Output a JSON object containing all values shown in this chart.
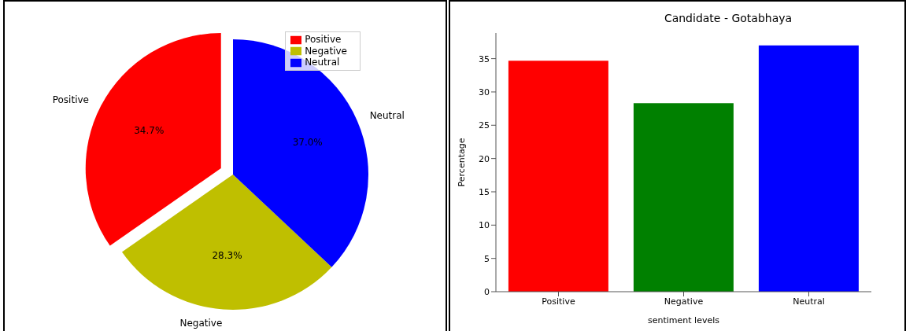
{
  "chart_data": [
    {
      "type": "pie",
      "categories": [
        "Positive",
        "Negative",
        "Neutral"
      ],
      "values": [
        34.7,
        28.3,
        37.0
      ],
      "colors": [
        "#ff0000",
        "#bfbf00",
        "#0000ff"
      ],
      "value_labels": [
        "34.7%",
        "28.3%",
        "37.0%"
      ],
      "legend": "top right"
    },
    {
      "type": "bar",
      "title": "Candidate - Gotabhaya",
      "xlabel": "sentiment levels",
      "ylabel": "Percentage",
      "categories": [
        "Positive",
        "Negative",
        "Neutral"
      ],
      "values": [
        34.7,
        28.3,
        37.0
      ],
      "colors": [
        "#ff0000",
        "#008000",
        "#0000ff"
      ],
      "ylim": [
        0,
        38.85
      ],
      "yticks": [
        0,
        5,
        10,
        15,
        20,
        25,
        30,
        35
      ],
      "grid": false
    }
  ]
}
